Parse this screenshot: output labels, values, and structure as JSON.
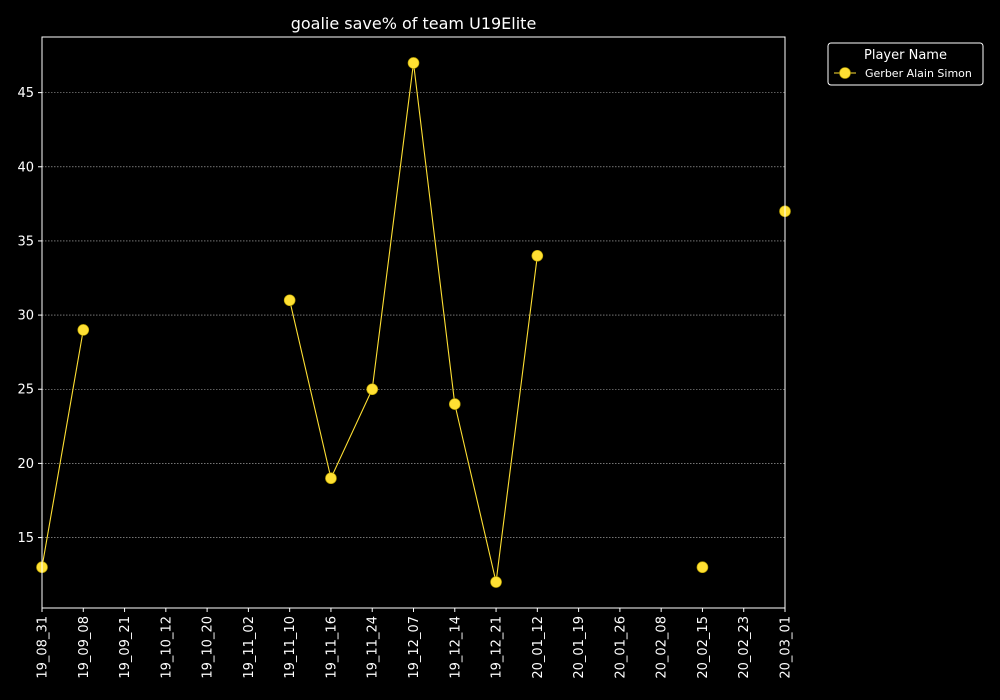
{
  "chart_data": {
    "type": "line",
    "title": "goalie save% of team U19Elite",
    "xlabel": "",
    "ylabel": "",
    "categories": [
      "19_08_31",
      "19_09_08",
      "19_09_21",
      "19_10_12",
      "19_10_20",
      "19_11_02",
      "19_11_10",
      "19_11_16",
      "19_11_24",
      "19_12_07",
      "19_12_14",
      "19_12_21",
      "20_01_12",
      "20_01_19",
      "20_01_26",
      "20_02_08",
      "20_02_15",
      "20_02_23",
      "20_03_01"
    ],
    "y_ticks": [
      15,
      20,
      25,
      30,
      35,
      40,
      45
    ],
    "ylim": [
      10.25,
      48.75
    ],
    "grid": true,
    "legend": {
      "title": "Player Name",
      "placement": "outside-top-right"
    },
    "series": [
      {
        "name": "Gerber Alain Simon",
        "color": "#ffe033",
        "values": [
          13,
          29,
          null,
          null,
          null,
          null,
          31,
          19,
          25,
          47,
          24,
          12,
          34,
          null,
          null,
          null,
          13,
          null,
          37
        ]
      }
    ]
  }
}
